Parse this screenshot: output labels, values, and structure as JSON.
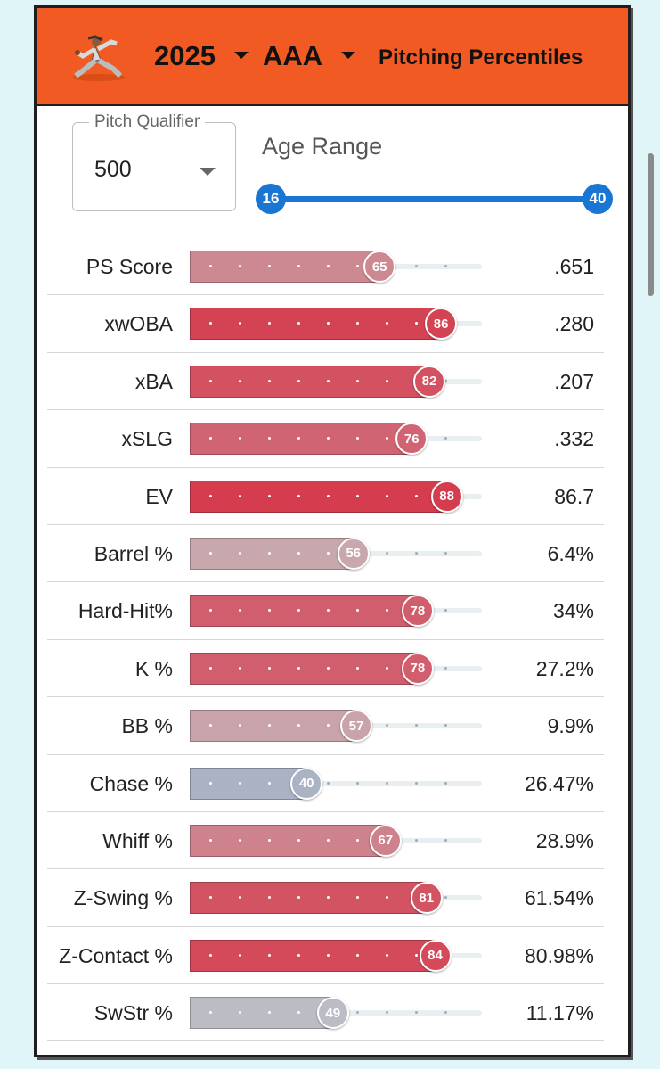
{
  "header": {
    "year": "2025",
    "level": "AAA",
    "title": "Pitching Percentiles",
    "icons": [
      "pitcher-logo",
      "chevron-down-icon"
    ],
    "color": "#f15a22"
  },
  "filters": {
    "pitch_qualifier_label": "Pitch Qualifier",
    "pitch_qualifier_value": "500",
    "age_range_label": "Age Range",
    "age_min": "16",
    "age_max": "40"
  },
  "rows": [
    {
      "label": "PS Score",
      "percentile": 65,
      "value": ".651"
    },
    {
      "label": "xwOBA",
      "percentile": 86,
      "value": ".280"
    },
    {
      "label": "xBA",
      "percentile": 82,
      "value": ".207"
    },
    {
      "label": "xSLG",
      "percentile": 76,
      "value": ".332"
    },
    {
      "label": "EV",
      "percentile": 88,
      "value": "86.7"
    },
    {
      "label": "Barrel %",
      "percentile": 56,
      "value": "6.4%"
    },
    {
      "label": "Hard-Hit%",
      "percentile": 78,
      "value": "34%"
    },
    {
      "label": "K %",
      "percentile": 78,
      "value": "27.2%"
    },
    {
      "label": "BB %",
      "percentile": 57,
      "value": "9.9%"
    },
    {
      "label": "Chase %",
      "percentile": 40,
      "value": "26.47%"
    },
    {
      "label": "Whiff %",
      "percentile": 67,
      "value": "28.9%"
    },
    {
      "label": "Z-Swing %",
      "percentile": 81,
      "value": "61.54%"
    },
    {
      "label": "Z-Contact %",
      "percentile": 84,
      "value": "80.98%"
    },
    {
      "label": "SwStr %",
      "percentile": 49,
      "value": "11.17%"
    }
  ]
}
